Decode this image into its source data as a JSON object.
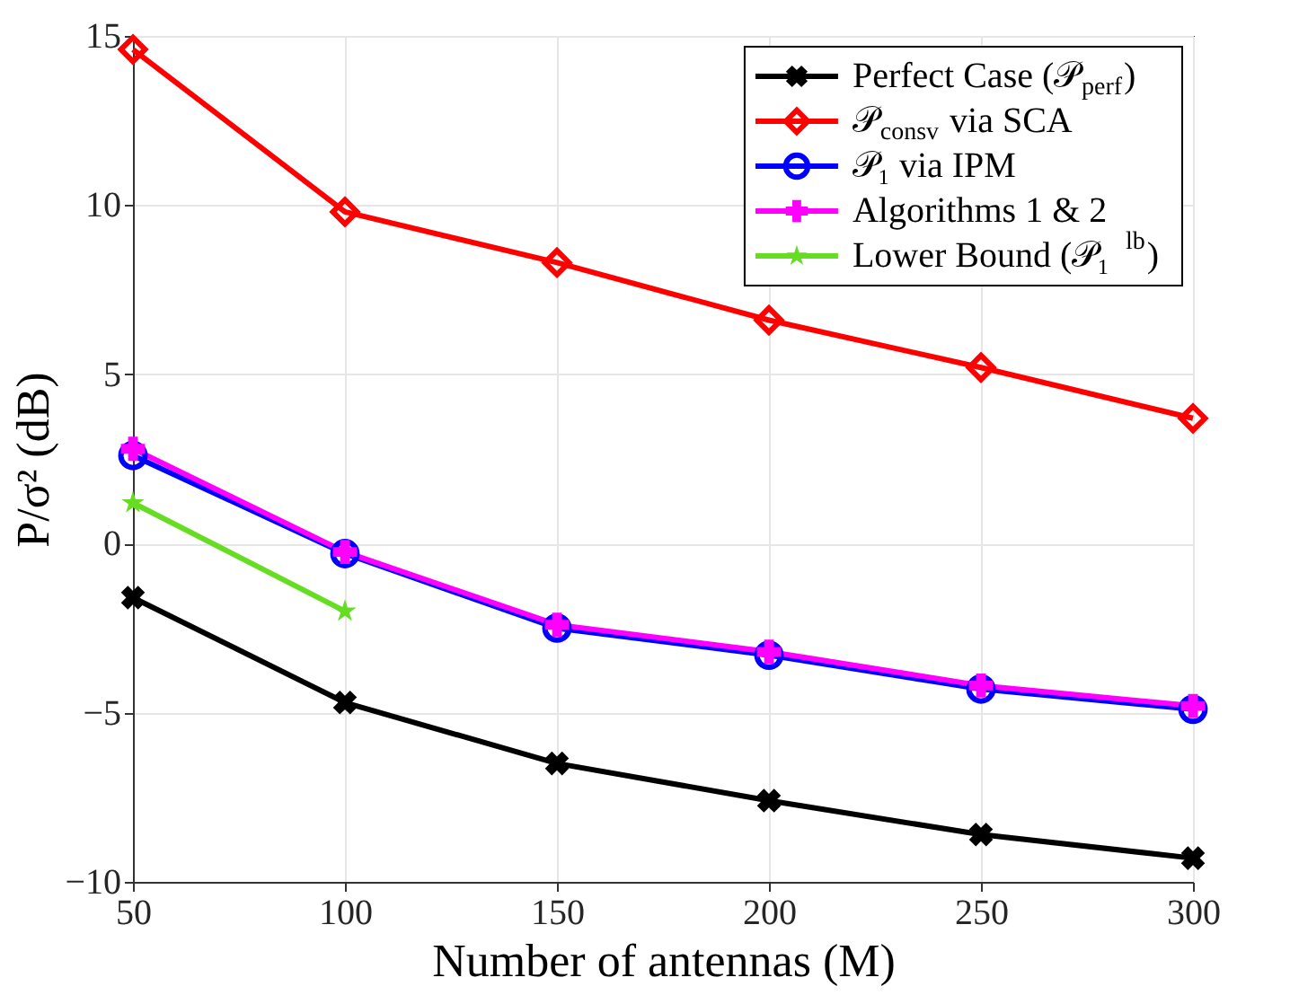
{
  "chart_data": {
    "type": "line",
    "xlabel": "Number of antennas (M)",
    "ylabel": "P/σ² (dB)",
    "x": [
      50,
      100,
      150,
      200,
      250,
      300
    ],
    "xlim": [
      50,
      300
    ],
    "xticks": [
      50,
      100,
      150,
      200,
      250,
      300
    ],
    "ylim": [
      -10,
      15
    ],
    "yticks": [
      -10,
      -5,
      0,
      5,
      10,
      15
    ],
    "grid": true,
    "legend": "top right",
    "line_style": "solid",
    "series": [
      {
        "name": "Perfect Case (𝒫$_{perf}$)",
        "color": "#000000",
        "marker": "cross",
        "values": [
          -1.6,
          -4.7,
          -6.5,
          -7.6,
          -8.6,
          -9.3
        ]
      },
      {
        "name": "𝒫$_{consv}$ via SCA",
        "color": "#ff0000",
        "marker": "diamond",
        "values": [
          14.6,
          9.8,
          8.3,
          6.6,
          5.2,
          3.7
        ]
      },
      {
        "name": "𝒫₁ via IPM",
        "color": "#0000ff",
        "marker": "circle",
        "values": [
          2.6,
          -0.3,
          -2.5,
          -3.3,
          -4.3,
          -4.9
        ]
      },
      {
        "name": "Algorithms 1 & 2",
        "color": "#ff00ff",
        "marker": "cross",
        "values": [
          2.8,
          -0.25,
          -2.4,
          -3.2,
          -4.2,
          -4.8
        ]
      },
      {
        "name": "Lower Bound (𝒫₁$^{lb}$)",
        "color": "#66dd22",
        "marker": "star",
        "x": [
          50,
          100
        ],
        "values": [
          1.2,
          -2.0
        ]
      }
    ]
  }
}
